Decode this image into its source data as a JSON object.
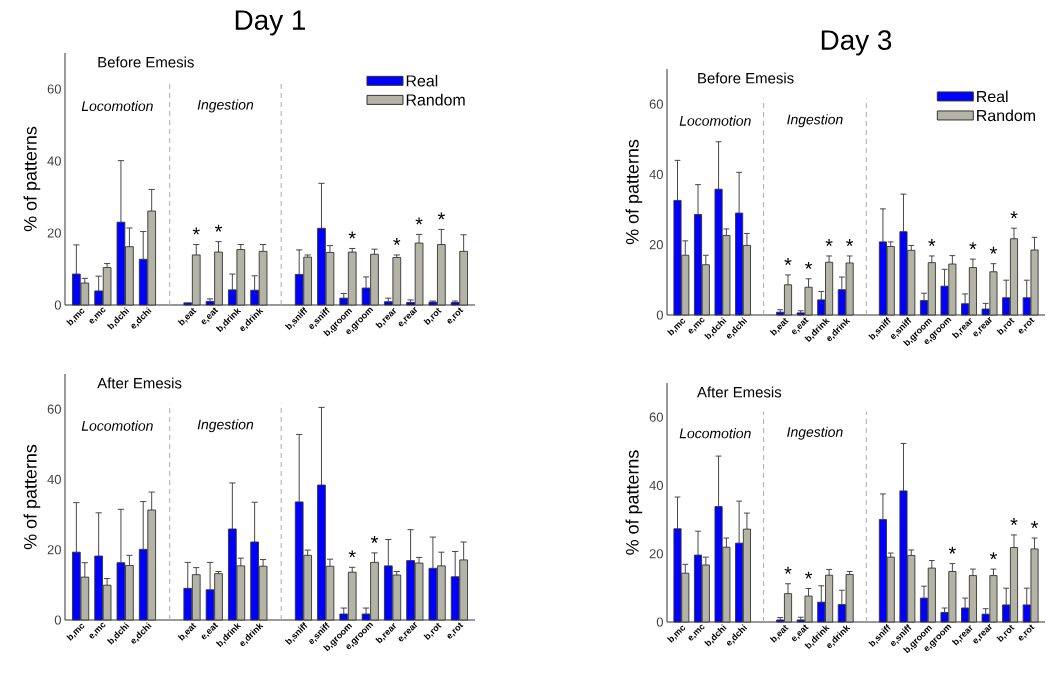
{
  "chart_data": [
    {
      "type": "bar",
      "title": "Day 1",
      "subtitle": "Before Emesis",
      "ylabel": "% of patterns",
      "categories": [
        "b,mc",
        "e,mc",
        "b,dchi",
        "e,dchi",
        null,
        "b,eat",
        "e,eat",
        "b,drink",
        "e,drink",
        null,
        "b,sniff",
        "e,sniff",
        "b,groom",
        "e,groom",
        "b,rear",
        "e,rear",
        "b,rot",
        "e,rot"
      ],
      "ylim": [
        0,
        70
      ],
      "yticks": [
        0,
        20,
        40,
        60
      ],
      "legend": "top right",
      "series": [
        {
          "name": "Real",
          "color": "#0000ff",
          "values": [
            8.6,
            3.9,
            23.0,
            12.7,
            null,
            0.6,
            1.0,
            4.2,
            4.1,
            null,
            8.5,
            21.3,
            1.9,
            4.7,
            0.9,
            0.7,
            0.8,
            0.7
          ],
          "errors": [
            [
              8.6,
              16.7
            ],
            [
              3.9,
              8.0
            ],
            [
              23.0,
              40.1
            ],
            [
              12.7,
              20.4
            ],
            null,
            null,
            [
              1.0,
              1.7
            ],
            [
              4.2,
              8.6
            ],
            [
              4.1,
              8.1
            ],
            null,
            [
              8.5,
              15.3
            ],
            [
              21.3,
              33.8
            ],
            [
              1.9,
              3.2
            ],
            [
              4.7,
              7.8
            ],
            [
              0.9,
              1.9
            ],
            [
              0.7,
              1.4
            ],
            [
              0.8,
              1.1
            ],
            [
              0.7,
              1.1
            ]
          ]
        },
        {
          "name": "Random",
          "color": "#b4b4a6",
          "values": [
            6.1,
            10.4,
            16.2,
            26.1,
            null,
            13.9,
            14.7,
            15.4,
            14.9,
            null,
            13.3,
            14.6,
            14.7,
            14.1,
            13.2,
            17.2,
            16.8,
            14.9
          ],
          "errors": [
            [
              6.1,
              7.4
            ],
            [
              10.4,
              11.5
            ],
            [
              16.2,
              21.4
            ],
            [
              26.1,
              32.1
            ],
            null,
            [
              13.9,
              16.8
            ],
            [
              14.7,
              17.6
            ],
            [
              15.4,
              16.8
            ],
            [
              14.9,
              16.8
            ],
            null,
            [
              13.3,
              13.9
            ],
            [
              14.6,
              16.5
            ],
            [
              14.7,
              15.7
            ],
            [
              14.1,
              15.5
            ],
            [
              13.2,
              13.9
            ],
            [
              17.2,
              19.6
            ],
            [
              16.8,
              21.0
            ],
            [
              14.9,
              19.5
            ]
          ]
        }
      ],
      "annotations": [
        "Locomotion",
        "Ingestion",
        {
          "text": "*",
          "x": "b,eat",
          "y": 13.9
        },
        {
          "text": "*",
          "x": "e,eat",
          "y": 14.7
        },
        {
          "text": "*",
          "x": "b,groom",
          "y": 14.7
        },
        {
          "text": "*",
          "x": "b,rear",
          "y": 13.2
        },
        {
          "text": "*",
          "x": "e,rear",
          "y": 17.2
        },
        {
          "text": "*",
          "x": "b,rot",
          "y": 16.8
        }
      ]
    },
    {
      "type": "bar",
      "subtitle": "After Emesis",
      "ylabel": "% of patterns",
      "categories": [
        "b,mc",
        "e,mc",
        "b,dchi",
        "e,dchi",
        null,
        "b,eat",
        "e,eat",
        "b,drink",
        "e,drink",
        null,
        "b,sniff",
        "e,sniff",
        "b,groom",
        "e,groom",
        "b,rear",
        "e,rear",
        "b,rot",
        "e,rot"
      ],
      "ylim": [
        0,
        70
      ],
      "yticks": [
        0,
        20,
        40,
        60
      ],
      "series": [
        {
          "color": "#0000ff",
          "values": [
            19.3,
            18.2,
            16.3,
            20.1,
            null,
            9.0,
            8.6,
            25.9,
            22.2,
            null,
            33.6,
            38.4,
            1.7,
            1.7,
            15.4,
            16.9,
            14.7,
            12.3
          ],
          "errors": [
            [
              19.3,
              33.4
            ],
            [
              18.2,
              30.5
            ],
            [
              16.3,
              31.5
            ],
            [
              20.1,
              33.7
            ],
            null,
            [
              9.0,
              16.4
            ],
            [
              8.6,
              16.4
            ],
            [
              25.9,
              39.0
            ],
            [
              22.2,
              33.5
            ],
            null,
            [
              33.6,
              52.8
            ],
            [
              38.4,
              60.5
            ],
            [
              1.7,
              3.4
            ],
            [
              1.7,
              3.4
            ],
            [
              15.4,
              22.9
            ],
            [
              16.9,
              25.7
            ],
            [
              14.7,
              23.6
            ],
            [
              12.3,
              19.5
            ]
          ]
        },
        {
          "color": "#b4b4a6",
          "values": [
            12.2,
            9.9,
            15.5,
            31.3,
            null,
            12.9,
            13.2,
            15.4,
            15.3,
            null,
            18.4,
            15.3,
            13.6,
            16.4,
            12.8,
            16.2,
            15.4,
            17.1
          ],
          "errors": [
            [
              12.2,
              16.3
            ],
            [
              9.9,
              11.8
            ],
            [
              15.5,
              18.4
            ],
            [
              31.3,
              36.4
            ],
            null,
            [
              12.9,
              14.9
            ],
            [
              13.2,
              13.8
            ],
            [
              15.4,
              17.6
            ],
            [
              15.3,
              17.2
            ],
            null,
            [
              18.4,
              19.9
            ],
            [
              15.3,
              17.3
            ],
            [
              13.6,
              15.0
            ],
            [
              16.4,
              19.1
            ],
            [
              12.8,
              13.8
            ],
            [
              16.2,
              17.8
            ],
            [
              15.4,
              19.3
            ],
            [
              17.1,
              22.2
            ]
          ]
        }
      ],
      "annotations": [
        "Locomotion",
        "Ingestion",
        {
          "text": "*",
          "x": "b,groom",
          "y": 13.6
        },
        {
          "text": "*",
          "x": "e,groom",
          "y": 16.4
        }
      ]
    },
    {
      "type": "bar",
      "title": "Day 3",
      "subtitle": "Before Emesis",
      "ylabel": "% of patterns",
      "categories": [
        "b,mc",
        "e,mc",
        "b,dchi",
        "e,dchi",
        null,
        "b,eat",
        "e,eat",
        "b,drink",
        "e,drink",
        null,
        "b,sniff",
        "e,sniff",
        "b,groom",
        "e,groom",
        "b,rear",
        "e,rear",
        "b,rot",
        "e,rot"
      ],
      "ylim": [
        0,
        70
      ],
      "yticks": [
        0,
        20,
        40,
        60
      ],
      "legend": "top right",
      "series": [
        {
          "name": "Real",
          "color": "#0000ff",
          "values": [
            32.6,
            28.6,
            35.8,
            29.0,
            null,
            0.8,
            0.6,
            4.3,
            7.2,
            null,
            20.8,
            23.7,
            4.1,
            8.2,
            3.2,
            1.7,
            4.9,
            4.9
          ],
          "errors": [
            [
              32.6,
              44.0
            ],
            [
              28.6,
              37.1
            ],
            [
              35.8,
              49.3
            ],
            [
              29.0,
              40.6
            ],
            null,
            [
              0.8,
              1.5
            ],
            [
              0.6,
              1.2
            ],
            [
              4.3,
              6.7
            ],
            [
              7.2,
              10.8
            ],
            null,
            [
              20.8,
              30.2
            ],
            [
              23.7,
              34.4
            ],
            [
              4.1,
              6.2
            ],
            [
              8.2,
              13.0
            ],
            [
              3.2,
              6.0
            ],
            [
              1.7,
              3.3
            ],
            [
              4.9,
              9.9
            ],
            [
              4.9,
              9.9
            ]
          ]
        },
        {
          "name": "Random",
          "color": "#b4b4a6",
          "values": [
            17.0,
            14.3,
            22.6,
            19.8,
            null,
            8.6,
            7.9,
            15.0,
            14.8,
            null,
            19.5,
            18.4,
            14.9,
            14.5,
            13.5,
            12.3,
            21.7,
            18.5
          ],
          "errors": [
            [
              17.0,
              21.1
            ],
            [
              14.3,
              17.0
            ],
            [
              22.6,
              24.5
            ],
            [
              19.8,
              23.2
            ],
            null,
            [
              8.6,
              11.4
            ],
            [
              7.9,
              10.3
            ],
            [
              15.0,
              16.8
            ],
            [
              14.8,
              16.8
            ],
            null,
            [
              19.5,
              20.8
            ],
            [
              18.4,
              19.8
            ],
            [
              14.9,
              16.8
            ],
            [
              14.5,
              16.9
            ],
            [
              13.5,
              15.9
            ],
            [
              12.3,
              14.6
            ],
            [
              21.7,
              24.7
            ],
            [
              18.5,
              22.1
            ]
          ]
        }
      ],
      "annotations": [
        "Locomotion",
        "Ingestion",
        {
          "text": "*",
          "x": "b,eat",
          "y": 8.6
        },
        {
          "text": "*",
          "x": "e,eat",
          "y": 7.9
        },
        {
          "text": "*",
          "x": "b,drink",
          "y": 15.0
        },
        {
          "text": "*",
          "x": "e,drink",
          "y": 14.8
        },
        {
          "text": "*",
          "x": "b,groom",
          "y": 14.9
        },
        {
          "text": "*",
          "x": "b,rear",
          "y": 13.5
        },
        {
          "text": "*",
          "x": "e,rear",
          "y": 12.3
        },
        {
          "text": "*",
          "x": "b,rot",
          "y": 21.7
        }
      ]
    },
    {
      "type": "bar",
      "subtitle": "After Emesis",
      "ylabel": "% of patterns",
      "categories": [
        "b,mc",
        "e,mc",
        "b,dchi",
        "e,dchi",
        null,
        "b,eat",
        "e,eat",
        "b,drink",
        "e,drink",
        null,
        "b,sniff",
        "e,sniff",
        "b,groom",
        "e,groom",
        "b,rear",
        "e,rear",
        "b,rot",
        "e,rot"
      ],
      "ylim": [
        0,
        70
      ],
      "yticks": [
        0,
        20,
        40,
        60
      ],
      "series": [
        {
          "color": "#0000ff",
          "values": [
            27.3,
            19.6,
            33.8,
            23.1,
            null,
            0.6,
            0.6,
            5.8,
            5.1,
            null,
            30.0,
            38.4,
            7.0,
            2.8,
            4.1,
            2.3,
            5.0,
            5.0
          ],
          "errors": [
            [
              27.3,
              36.6
            ],
            [
              19.6,
              26.6
            ],
            [
              33.8,
              48.6
            ],
            [
              23.1,
              35.4
            ],
            null,
            [
              0.6,
              1.3
            ],
            [
              0.6,
              1.4
            ],
            [
              5.8,
              10.6
            ],
            [
              5.1,
              9.3
            ],
            null,
            [
              30.0,
              37.5
            ],
            [
              38.4,
              52.3
            ],
            [
              7.0,
              10.5
            ],
            [
              2.8,
              4.1
            ],
            [
              4.1,
              7.0
            ],
            [
              2.3,
              3.9
            ],
            [
              5.0,
              9.9
            ],
            [
              5.0,
              9.9
            ]
          ]
        },
        {
          "color": "#b4b4a6",
          "values": [
            14.3,
            16.7,
            21.9,
            27.2,
            null,
            8.3,
            7.6,
            13.7,
            13.9,
            null,
            19.0,
            19.5,
            15.8,
            14.8,
            13.6,
            13.6,
            21.8,
            21.4
          ],
          "errors": [
            [
              14.3,
              16.9
            ],
            [
              16.7,
              19.0
            ],
            [
              21.9,
              24.6
            ],
            [
              27.2,
              31.9
            ],
            null,
            [
              8.3,
              11.2
            ],
            [
              7.6,
              9.8
            ],
            [
              13.7,
              15.4
            ],
            [
              13.9,
              14.8
            ],
            null,
            [
              19.0,
              20.2
            ],
            [
              19.5,
              21.1
            ],
            [
              15.8,
              18.0
            ],
            [
              14.8,
              17.1
            ],
            [
              13.6,
              15.5
            ],
            [
              13.6,
              15.5
            ],
            [
              21.8,
              25.5
            ],
            [
              21.4,
              24.6
            ]
          ]
        }
      ],
      "annotations": [
        "Locomotion",
        "Ingestion",
        {
          "text": "*",
          "x": "b,eat",
          "y": 8.3
        },
        {
          "text": "*",
          "x": "e,eat",
          "y": 7.6
        },
        {
          "text": "*",
          "x": "e,groom",
          "y": 14.8
        },
        {
          "text": "*",
          "x": "e,rear",
          "y": 13.6
        },
        {
          "text": "*",
          "x": "b,rot",
          "y": 21.8
        },
        {
          "text": "*",
          "x": "e,rot",
          "y": 21.4
        }
      ]
    }
  ]
}
